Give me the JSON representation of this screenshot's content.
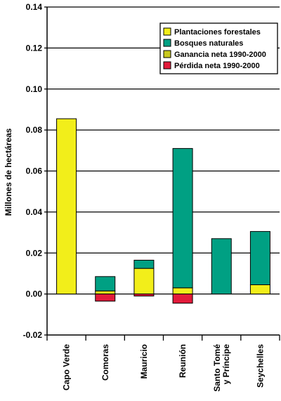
{
  "chart_data": {
    "type": "bar",
    "stacked": true,
    "ylabel": "Millones de hectáreas",
    "ylim": [
      -0.02,
      0.14
    ],
    "yticks": [
      "0.14",
      "0.12",
      "0.10",
      "0.08",
      "0.06",
      "0.04",
      "0.02",
      "0.00",
      "-0.02"
    ],
    "ytick_values": [
      0.14,
      0.12,
      0.1,
      0.08,
      0.06,
      0.04,
      0.02,
      0.0,
      -0.02
    ],
    "grid": "horizontal",
    "legend_position": "top-right",
    "categories": [
      {
        "label": [
          "Capo Verde"
        ]
      },
      {
        "label": [
          "Comoras"
        ]
      },
      {
        "label": [
          "Mauricio"
        ]
      },
      {
        "label": [
          "Reunión"
        ]
      },
      {
        "label": [
          "Santo Tomé",
          "y Príncipe"
        ]
      },
      {
        "label": [
          "Seychelles"
        ]
      }
    ],
    "series": [
      {
        "name": "Plantaciones forestales",
        "color": "#f2ee1a",
        "values": [
          0.0855,
          0.0015,
          0.0125,
          0.003,
          0.0,
          0.0045
        ]
      },
      {
        "name": "Bosques naturales",
        "color": "#00a083",
        "values": [
          0.0,
          0.007,
          0.004,
          0.068,
          0.027,
          0.026
        ]
      },
      {
        "name": "Ganancia neta 1990-2000",
        "color": "#c8c81e",
        "values": [
          0.0,
          0.0,
          0.0,
          0.0,
          0.0,
          0.0
        ]
      },
      {
        "name": "Pérdida neta  1990-2000",
        "color": "#e31b3b",
        "values": [
          0.0,
          -0.0035,
          -0.001,
          -0.0045,
          0.0,
          0.0
        ]
      }
    ]
  }
}
